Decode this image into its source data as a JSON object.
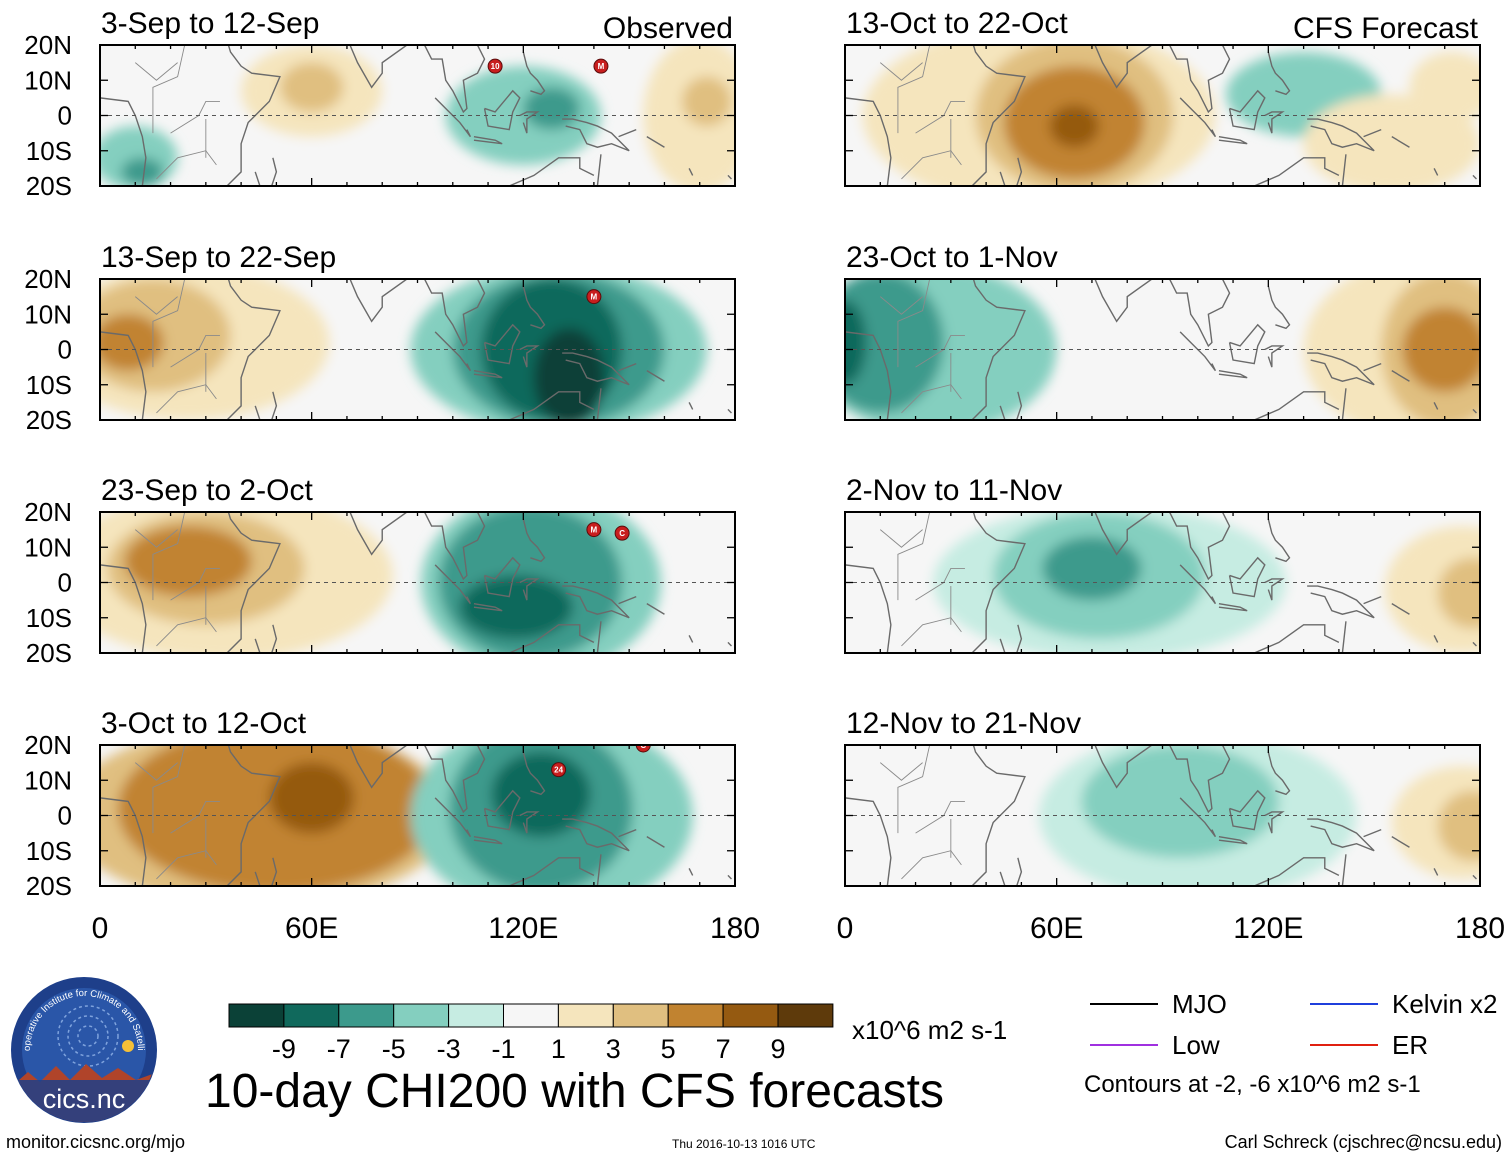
{
  "chart_data": {
    "type": "heatmap",
    "title": "10-day CHI200 with CFS forecasts",
    "xlabel": "",
    "ylabel": "",
    "x_range": [
      0,
      180
    ],
    "y_range": [
      -20,
      20
    ],
    "x_ticks": [
      "0",
      "60E",
      "120E",
      "180"
    ],
    "y_ticks": [
      "20N",
      "10N",
      "0",
      "10S",
      "20S"
    ],
    "colorbar": {
      "units": "x10^6 m2 s-1",
      "labels": [
        "-9",
        "-7",
        "-5",
        "-3",
        "-1",
        "1",
        "3",
        "5",
        "7",
        "9"
      ],
      "colors": [
        "#0b4137",
        "#10695c",
        "#3c9a8c",
        "#84cfbf",
        "#c6ece2",
        "#f6f6f6",
        "#f5e5bd",
        "#e0bf80",
        "#c18330",
        "#955a11",
        "#5e3a0b"
      ]
    },
    "legend": [
      {
        "name": "MJO",
        "color": "#000000"
      },
      {
        "name": "Kelvin x2",
        "color": "#1f3fdc"
      },
      {
        "name": "Low",
        "color": "#a030e0"
      },
      {
        "name": "ER",
        "color": "#e02010"
      }
    ],
    "contour_note": "Contours at -2, -6 x10^6 m2 s-1",
    "panels": [
      {
        "id": "p1",
        "label": "3-Sep to 12-Sep",
        "tag": "Observed",
        "anomalies": [
          {
            "lon": 60,
            "lat": 7,
            "rlon": 20,
            "rlat": 13,
            "v": 3
          },
          {
            "lon": 60,
            "lat": 8,
            "rlon": 9,
            "rlat": 7,
            "v": 5
          },
          {
            "lon": 10,
            "lat": -12,
            "rlon": 12,
            "rlat": 9,
            "v": -3
          },
          {
            "lon": 12,
            "lat": -16,
            "rlon": 6,
            "rlat": 4,
            "v": -5
          },
          {
            "lon": 120,
            "lat": 0,
            "rlon": 22,
            "rlat": 14,
            "v": -3
          },
          {
            "lon": 128,
            "lat": 2,
            "rlon": 8,
            "rlat": 6,
            "v": -5
          },
          {
            "lon": 170,
            "lat": 0,
            "rlon": 16,
            "rlat": 22,
            "v": 3
          },
          {
            "lon": 172,
            "lat": 4,
            "rlon": 7,
            "rlat": 7,
            "v": 5
          }
        ],
        "storms": [
          {
            "lon": 112,
            "lat": 14,
            "label": "10"
          },
          {
            "lon": 142,
            "lat": 14,
            "label": "M"
          }
        ]
      },
      {
        "id": "p2",
        "label": "13-Sep to 22-Sep",
        "tag": "",
        "anomalies": [
          {
            "lon": 25,
            "lat": 2,
            "rlon": 40,
            "rlat": 22,
            "v": 3
          },
          {
            "lon": 15,
            "lat": 4,
            "rlon": 22,
            "rlat": 16,
            "v": 5
          },
          {
            "lon": 8,
            "lat": 2,
            "rlon": 10,
            "rlat": 8,
            "v": 7
          },
          {
            "lon": 130,
            "lat": 0,
            "rlon": 42,
            "rlat": 24,
            "v": -3
          },
          {
            "lon": 130,
            "lat": 0,
            "rlon": 30,
            "rlat": 22,
            "v": -5
          },
          {
            "lon": 128,
            "lat": 0,
            "rlon": 20,
            "rlat": 20,
            "v": -7
          },
          {
            "lon": 133,
            "lat": -8,
            "rlon": 10,
            "rlat": 14,
            "v": -9
          }
        ],
        "storms": [
          {
            "lon": 140,
            "lat": 15,
            "label": "M"
          }
        ]
      },
      {
        "id": "p3",
        "label": "23-Sep to 2-Oct",
        "tag": "",
        "anomalies": [
          {
            "lon": 35,
            "lat": 2,
            "rlon": 48,
            "rlat": 24,
            "v": 3
          },
          {
            "lon": 30,
            "lat": 4,
            "rlon": 28,
            "rlat": 16,
            "v": 5
          },
          {
            "lon": 25,
            "lat": 6,
            "rlon": 18,
            "rlat": 10,
            "v": 7
          },
          {
            "lon": 125,
            "lat": 0,
            "rlon": 34,
            "rlat": 26,
            "v": -3
          },
          {
            "lon": 122,
            "lat": 0,
            "rlon": 26,
            "rlat": 22,
            "v": -5
          },
          {
            "lon": 118,
            "lat": -7,
            "rlon": 16,
            "rlat": 9,
            "v": -7
          }
        ],
        "storms": [
          {
            "lon": 140,
            "lat": 15,
            "label": "M"
          },
          {
            "lon": 148,
            "lat": 14,
            "label": "C"
          }
        ]
      },
      {
        "id": "p4",
        "label": "3-Oct to 12-Oct",
        "tag": "",
        "anomalies": [
          {
            "lon": 45,
            "lat": 0,
            "rlon": 55,
            "rlat": 26,
            "v": 5
          },
          {
            "lon": 50,
            "lat": 2,
            "rlon": 45,
            "rlat": 24,
            "v": 7
          },
          {
            "lon": 60,
            "lat": 5,
            "rlon": 12,
            "rlat": 10,
            "v": 9
          },
          {
            "lon": 128,
            "lat": 0,
            "rlon": 40,
            "rlat": 28,
            "v": -3
          },
          {
            "lon": 125,
            "lat": 2,
            "rlon": 26,
            "rlat": 24,
            "v": -5
          },
          {
            "lon": 125,
            "lat": 6,
            "rlon": 14,
            "rlat": 12,
            "v": -7
          }
        ],
        "storms": [
          {
            "lon": 130,
            "lat": 13,
            "label": "24"
          },
          {
            "lon": 154,
            "lat": 20,
            "label": "C"
          }
        ]
      },
      {
        "id": "p5",
        "label": "13-Oct to 22-Oct",
        "tag": "CFS Forecast",
        "anomalies": [
          {
            "lon": 55,
            "lat": 0,
            "rlon": 50,
            "rlat": 26,
            "v": 3
          },
          {
            "lon": 65,
            "lat": 0,
            "rlon": 28,
            "rlat": 22,
            "v": 5
          },
          {
            "lon": 65,
            "lat": -2,
            "rlon": 20,
            "rlat": 16,
            "v": 7
          },
          {
            "lon": 65,
            "lat": -3,
            "rlon": 7,
            "rlat": 6,
            "v": 9
          },
          {
            "lon": 130,
            "lat": 6,
            "rlon": 22,
            "rlat": 12,
            "v": -3
          },
          {
            "lon": 155,
            "lat": -8,
            "rlon": 25,
            "rlat": 14,
            "v": 3
          },
          {
            "lon": 172,
            "lat": 8,
            "rlon": 12,
            "rlat": 10,
            "v": 3
          }
        ],
        "storms": []
      },
      {
        "id": "p6",
        "label": "23-Oct to 1-Nov",
        "tag": "",
        "anomalies": [
          {
            "lon": 25,
            "lat": 0,
            "rlon": 35,
            "rlat": 24,
            "v": -3
          },
          {
            "lon": 10,
            "lat": 2,
            "rlon": 18,
            "rlat": 20,
            "v": -5
          },
          {
            "lon": 0,
            "lat": 2,
            "rlon": 6,
            "rlat": 12,
            "v": -7
          },
          {
            "lon": 165,
            "lat": 0,
            "rlon": 35,
            "rlat": 26,
            "v": 3
          },
          {
            "lon": 170,
            "lat": 0,
            "rlon": 18,
            "rlat": 22,
            "v": 5
          },
          {
            "lon": 170,
            "lat": 0,
            "rlon": 12,
            "rlat": 12,
            "v": 7
          },
          {
            "lon": 75,
            "lat": -6,
            "rlon": 12,
            "rlat": 14,
            "v": 1
          }
        ],
        "storms": []
      },
      {
        "id": "p7",
        "label": "2-Nov to 11-Nov",
        "tag": "",
        "anomalies": [
          {
            "lon": 75,
            "lat": 0,
            "rlon": 50,
            "rlat": 22,
            "v": -1
          },
          {
            "lon": 72,
            "lat": 2,
            "rlon": 30,
            "rlat": 18,
            "v": -3
          },
          {
            "lon": 70,
            "lat": 4,
            "rlon": 14,
            "rlat": 9,
            "v": -5
          },
          {
            "lon": 175,
            "lat": -2,
            "rlon": 22,
            "rlat": 18,
            "v": 3
          },
          {
            "lon": 178,
            "lat": -3,
            "rlon": 10,
            "rlat": 10,
            "v": 5
          }
        ],
        "storms": []
      },
      {
        "id": "p8",
        "label": "12-Nov to 21-Nov",
        "tag": "",
        "anomalies": [
          {
            "lon": 100,
            "lat": 0,
            "rlon": 45,
            "rlat": 24,
            "v": -1
          },
          {
            "lon": 95,
            "lat": 4,
            "rlon": 28,
            "rlat": 16,
            "v": -3
          },
          {
            "lon": 175,
            "lat": -2,
            "rlon": 20,
            "rlat": 16,
            "v": 3
          },
          {
            "lon": 178,
            "lat": -3,
            "rlon": 10,
            "rlat": 10,
            "v": 5
          }
        ],
        "storms": []
      }
    ]
  },
  "footer": {
    "left": "monitor.cicsnc.org/mjo",
    "center": "Thu 2016-10-13 1016 UTC",
    "right": "Carl Schreck (cjschrec@ncsu.edu)"
  },
  "logo": {
    "text": "cics.nc",
    "ring_text": "Cooperative Institute for Climate and Satellites"
  }
}
